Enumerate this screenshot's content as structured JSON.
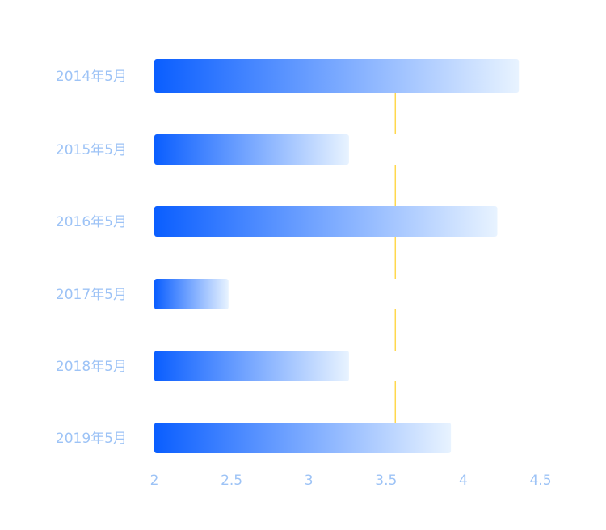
{
  "chart_data": {
    "type": "bar",
    "orientation": "horizontal",
    "categories": [
      "2014年5月",
      "2015年5月",
      "2016年5月",
      "2017年5月",
      "2018年5月",
      "2019年5月"
    ],
    "values": [
      4.36,
      3.26,
      4.22,
      2.48,
      3.26,
      3.92
    ],
    "xlim": [
      2,
      4.5
    ],
    "xticks": [
      "2",
      "2.5",
      "3",
      "3.5",
      "4",
      "4.5"
    ],
    "reference_line": {
      "x": 3.56,
      "color": "#FFD84D"
    },
    "grid": false,
    "colors": {
      "bar_start": "#0A5EFF",
      "bar_end": "#E8F3FF",
      "label": "#9DC3F6"
    }
  }
}
